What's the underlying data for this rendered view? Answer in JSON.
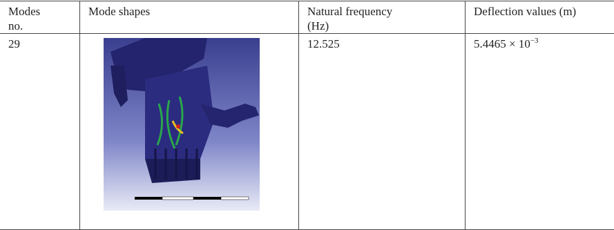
{
  "table": {
    "header": [
      "Modes no.",
      "Mode shapes",
      "Natural frequency (Hz)",
      "Deflection values (m)"
    ],
    "rows": [
      {
        "mode": "29",
        "frequency": "12.525",
        "deflection": {
          "mantissa": "5.4465 × 10",
          "exponent": "−3"
        }
      }
    ]
  }
}
